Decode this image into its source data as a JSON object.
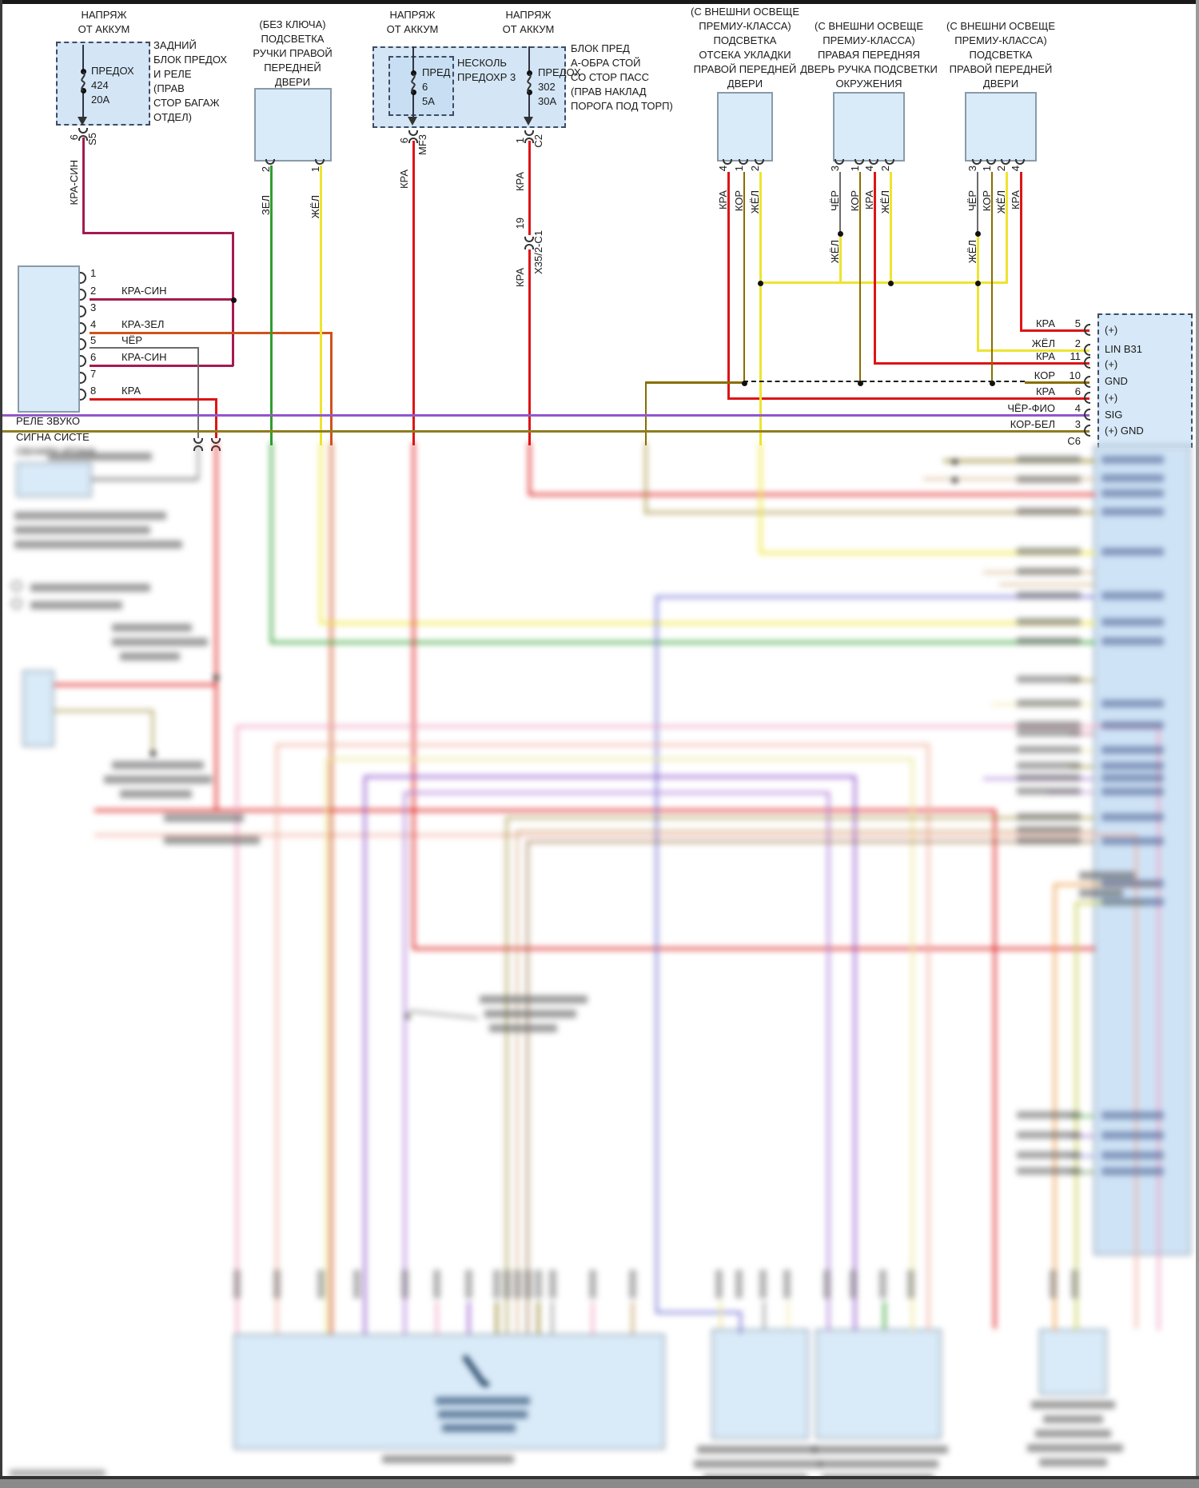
{
  "palette": {
    "red": "#dd1515",
    "maroon": "#a31b51",
    "green": "#2f9e2f",
    "yellow": "#ede431",
    "orange": "#cf521c",
    "gray": "#6b6b6b",
    "gold": "#8a6d00",
    "violet": "#9257cc",
    "olive": "#8f7d1e",
    "blue": "#7b7bd8",
    "pink": "#f0a3c3",
    "salmon": "#efb3a3",
    "pale_yellow": "#ece798",
    "purple": "#b07fd8",
    "tan": "#c7a26a",
    "brown": "#8a5a2a",
    "dark_pink": "#c06080",
    "yellow_green": "#c9cf52",
    "orange2": "#f0a050",
    "box_fill": "#d9eaf8",
    "strip_fill": "#cfe3f6"
  },
  "fuse1": {
    "t1": "НАПРЯЖ",
    "t2": "ОТ АККУМ",
    "name": "ПРЕДОХ",
    "num": "424",
    "amp": "20A",
    "d1": "ЗАДНИЙ",
    "d2": "БЛОК ПРЕДОХ",
    "d3": "И РЕЛЕ",
    "d4": "(ПРАВ",
    "d5": "СТОР БАГАЖ",
    "d6": "ОТДЕЛ)",
    "pin": "6",
    "conn": "S5",
    "wire": "КРА-СИН"
  },
  "keyless": {
    "l1": "(БЕЗ КЛЮЧА)",
    "l2": "ПОДСВЕТКА",
    "l3": "РУЧКИ ПРАВОЙ",
    "l4": "ПЕРЕДНЕЙ",
    "l5": "ДВЕРИ",
    "p1": "2",
    "w1": "ЗЕЛ",
    "p2": "1",
    "w2": "ЖЁЛ"
  },
  "fusemid": {
    "s1a": "НАПРЯЖ",
    "s1b": "ОТ АККУМ",
    "s2a": "НАПРЯЖ",
    "s2b": "ОТ АККУМ",
    "blk1": "НЕСКОЛЬ",
    "blk2": "ПРЕДОХР 3",
    "fa_name": "ПРЕД",
    "fa_num": "6",
    "fa_amp": "5A",
    "fa_pin": "6",
    "fa_conn": "MF3",
    "fa_wire": "КРА",
    "fb_name": "ПРЕДОХ",
    "fb_num": "302",
    "fb_amp": "30A",
    "fb_pin": "1",
    "fb_conn": "C2",
    "fb_wire": "КРА",
    "inline_pin": "19",
    "inline_id": "X35/2-C1",
    "fb_wire2": "КРА",
    "d1": "БЛОК ПРЕД",
    "d2": "А-ОБРА СТОЙ",
    "d3": "СО СТОР ПАСС",
    "d4": "(ПРАВ НАКЛАД",
    "d5": "ПОРОГА ПОД ТОРП)"
  },
  "lamp1": {
    "l1": "(С ВНЕШНИ ОСВЕЩЕ",
    "l2": "ПРЕМИУ-КЛАССА)",
    "l3": "ПОДСВЕТКА",
    "l4": "ОТСЕКА УКЛАДКИ",
    "l5": "ПРАВОЙ ПЕРЕДНЕЙ",
    "l6": "ДВЕРИ",
    "p1": "4",
    "w1": "КРА",
    "p2": "1",
    "w2": "КОР",
    "p3": "2",
    "w3": "ЖЁЛ"
  },
  "lamp2": {
    "l1": "(С ВНЕШНИ ОСВЕЩЕ",
    "l2": "ПРЕМИУ-КЛАССА)",
    "l3": "ПРАВАЯ ПЕРЕДНЯЯ",
    "l4": "ДВЕРЬ РУЧКА ПОДСВЕТКИ",
    "l5": "ОКРУЖЕНИЯ",
    "p1": "3",
    "w1": "ЧЁР",
    "p2": "1",
    "w2": "КОР",
    "p3": "4",
    "w3": "КРА",
    "p4": "2",
    "w4": "ЖЁЛ",
    "splice": "ЖЁЛ"
  },
  "lamp3": {
    "l1": "(С ВНЕШНИ ОСВЕЩЕ",
    "l2": "ПРЕМИУ-КЛАССА)",
    "l3": "ПОДСВЕТКА",
    "l4": "ПРАВОЙ ПЕРЕДНЕЙ",
    "l5": "ДВЕРИ",
    "p1": "3",
    "w1": "ЧЁР",
    "p2": "1",
    "w2": "КОР",
    "p3": "2",
    "w3": "ЖЁЛ",
    "p4": "4",
    "w4": "КРА",
    "splice": "ЖЁЛ"
  },
  "relay": {
    "l1": "РЕЛЕ ЗВУКО",
    "l2": "СИГНА СИСТЕ",
    "l3": "ОБНАРУ УГОНА",
    "n1": "1",
    "n2": "2",
    "n3": "3",
    "n4": "4",
    "n5": "5",
    "n6": "6",
    "n7": "7",
    "n8": "8",
    "w2": "КРА-СИН",
    "w4": "КРА-ЗЕЛ",
    "w5": "ЧЁР",
    "w6": "КРА-СИН",
    "w8": "КРА"
  },
  "rconn": {
    "r1w": "КРА",
    "r1p": "5",
    "r1d": "(+)",
    "r2w": "ЖЁЛ",
    "r2p": "2",
    "r2d": "LIN B31",
    "r3w": "КРА",
    "r3p": "11",
    "r3d": "(+)",
    "r4w": "КОР",
    "r4p": "10",
    "r4d": "GND",
    "r5w": "КРА",
    "r5p": "6",
    "r5d": "(+)",
    "r6w": "ЧЁР-ФИО",
    "r6p": "4",
    "r6d": "SIG",
    "r7w": "КОР-БЕЛ",
    "r7p": "3",
    "r7d": "(+) GND",
    "id": "C6"
  }
}
